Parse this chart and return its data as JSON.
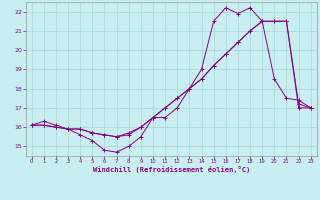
{
  "xlabel": "Windchill (Refroidissement éolien,°C)",
  "background_color": "#c8eef0",
  "line_color": "#880088",
  "grid_color": "#a0d8d8",
  "xlim": [
    -0.5,
    23.5
  ],
  "ylim": [
    14.5,
    22.5
  ],
  "xticks": [
    0,
    1,
    2,
    3,
    4,
    5,
    6,
    7,
    8,
    9,
    10,
    11,
    12,
    13,
    14,
    15,
    16,
    17,
    18,
    19,
    20,
    21,
    22,
    23
  ],
  "yticks": [
    15,
    16,
    17,
    18,
    19,
    20,
    21,
    22
  ],
  "series1_x": [
    0,
    1,
    2,
    3,
    4,
    5,
    6,
    7,
    8,
    9,
    10,
    11,
    12,
    13,
    14,
    15,
    16,
    17,
    18,
    19,
    20,
    21,
    22,
    23
  ],
  "series1_y": [
    16.1,
    16.3,
    16.1,
    15.9,
    15.6,
    15.3,
    14.8,
    14.7,
    15.0,
    15.5,
    16.5,
    16.5,
    17.0,
    18.0,
    19.0,
    21.5,
    22.2,
    21.9,
    22.2,
    21.5,
    18.5,
    17.5,
    17.4,
    17.0
  ],
  "series2_x": [
    0,
    1,
    2,
    3,
    4,
    5,
    6,
    7,
    8,
    9,
    10,
    11,
    12,
    13,
    14,
    15,
    16,
    17,
    18,
    19,
    20,
    21,
    22,
    23
  ],
  "series2_y": [
    16.1,
    16.1,
    16.0,
    15.9,
    15.9,
    15.7,
    15.6,
    15.5,
    15.6,
    16.0,
    16.5,
    17.0,
    17.5,
    18.0,
    18.5,
    19.2,
    19.8,
    20.4,
    21.0,
    21.5,
    21.5,
    21.5,
    17.0,
    17.0
  ],
  "series3_x": [
    0,
    1,
    2,
    3,
    4,
    5,
    6,
    7,
    8,
    9,
    10,
    11,
    12,
    13,
    14,
    15,
    16,
    17,
    18,
    19,
    20,
    21,
    22,
    23
  ],
  "series3_y": [
    16.1,
    16.1,
    16.0,
    15.9,
    15.9,
    15.7,
    15.6,
    15.5,
    15.7,
    16.0,
    16.5,
    17.0,
    17.5,
    18.0,
    18.5,
    19.2,
    19.8,
    20.4,
    21.0,
    21.5,
    21.5,
    21.5,
    17.2,
    17.0
  ]
}
